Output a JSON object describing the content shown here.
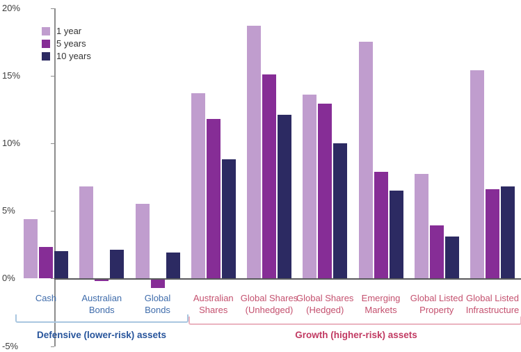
{
  "chart_data": {
    "type": "bar",
    "title": "",
    "unit": "%",
    "ylim": [
      -5,
      20
    ],
    "grid": false,
    "legend_position": "top-left",
    "y_tick_labels": [
      "20%",
      "15%",
      "10%",
      "5%",
      "0%",
      "-5%"
    ],
    "categories": [
      "Cash",
      "Australian Bonds",
      "Global Bonds",
      "Australian Shares",
      "Global Shares (Unhedged)",
      "Global Shares (Hedged)",
      "Emerging Markets",
      "Global Listed Property",
      "Global Listed Infrastructure"
    ],
    "category_lines": [
      [
        "Cash"
      ],
      [
        "Australian",
        "Bonds"
      ],
      [
        "Global",
        "Bonds"
      ],
      [
        "Australian",
        "Shares"
      ],
      [
        "Global Shares",
        "(Unhedged)"
      ],
      [
        "Global Shares",
        "(Hedged)"
      ],
      [
        "Emerging",
        "Markets"
      ],
      [
        "Global Listed",
        "Property"
      ],
      [
        "Global Listed",
        "Infrastructure"
      ]
    ],
    "series": [
      {
        "name": "1 year",
        "color": "#c09dce",
        "values": [
          4.4,
          6.8,
          5.5,
          13.7,
          18.7,
          13.6,
          17.5,
          7.7,
          15.4
        ]
      },
      {
        "name": "5 years",
        "color": "#862d96",
        "values": [
          2.3,
          -0.1,
          -0.6,
          11.8,
          15.1,
          12.9,
          7.9,
          3.9,
          6.6
        ]
      },
      {
        "name": "10 years",
        "color": "#2c2a62",
        "values": [
          2.0,
          2.1,
          1.9,
          8.8,
          12.1,
          10.0,
          6.5,
          3.1,
          6.8
        ]
      }
    ],
    "sections": [
      {
        "label": "Defensive (lower-risk) assets",
        "category_span": [
          0,
          2
        ],
        "label_color": "#27549b",
        "category_text_color": "#3f6cab",
        "bracket_color": "#a9c6e0"
      },
      {
        "label": "Growth (higher-risk) assets",
        "category_span": [
          3,
          8
        ],
        "label_color": "#c13a62",
        "category_text_color": "#c4506e",
        "bracket_color": "#eab4c0"
      }
    ]
  }
}
